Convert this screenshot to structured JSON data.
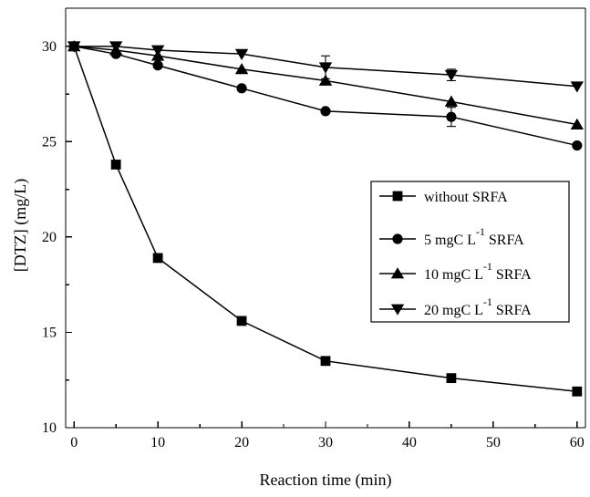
{
  "chart_data": {
    "type": "line",
    "xlabel": "Reaction time (min)",
    "ylabel": "[DTZ] (mg/L)",
    "xlim": [
      -1,
      61
    ],
    "ylim": [
      10,
      32
    ],
    "x_ticks": [
      0,
      10,
      20,
      30,
      40,
      50,
      60
    ],
    "y_ticks": [
      10,
      15,
      20,
      25,
      30
    ],
    "grid": false,
    "legend_position": "center-right",
    "series": [
      {
        "name": "without SRFA",
        "legend": {
          "before_superscript": "without SRFA",
          "superscript": "",
          "after_superscript": ""
        },
        "marker": "square",
        "x": [
          0,
          5,
          10,
          20,
          30,
          45,
          60
        ],
        "values": [
          30.0,
          23.8,
          18.9,
          15.6,
          13.5,
          12.6,
          11.9
        ],
        "errors": [
          0,
          0,
          0,
          0,
          0,
          0,
          0
        ]
      },
      {
        "name": "5 mgC L-1 SRFA",
        "legend": {
          "before_superscript": "5 mgC L",
          "superscript": "-1",
          "after_superscript": " SRFA"
        },
        "marker": "circle",
        "x": [
          0,
          5,
          10,
          20,
          30,
          45,
          60
        ],
        "values": [
          30.0,
          29.6,
          29.0,
          27.8,
          26.6,
          26.3,
          24.8
        ],
        "errors": [
          0,
          0,
          0,
          0,
          0,
          0.5,
          0
        ]
      },
      {
        "name": "10 mgC L-1 SRFA",
        "legend": {
          "before_superscript": "10 mgC L",
          "superscript": "-1",
          "after_superscript": " SRFA"
        },
        "marker": "triangle-up",
        "x": [
          0,
          5,
          10,
          20,
          30,
          45,
          60
        ],
        "values": [
          30.0,
          29.8,
          29.5,
          28.8,
          28.2,
          27.1,
          25.9
        ],
        "errors": [
          0,
          0,
          0,
          0,
          0,
          0,
          0
        ]
      },
      {
        "name": "20 mgC L-1 SRFA",
        "legend": {
          "before_superscript": "20 mgC L",
          "superscript": "-1",
          "after_superscript": " SRFA"
        },
        "marker": "triangle-down",
        "x": [
          0,
          5,
          10,
          20,
          30,
          45,
          60
        ],
        "values": [
          30.0,
          30.0,
          29.8,
          29.6,
          28.9,
          28.5,
          27.9
        ],
        "errors": [
          0,
          0,
          0,
          0,
          0.6,
          0.3,
          0
        ]
      }
    ]
  }
}
